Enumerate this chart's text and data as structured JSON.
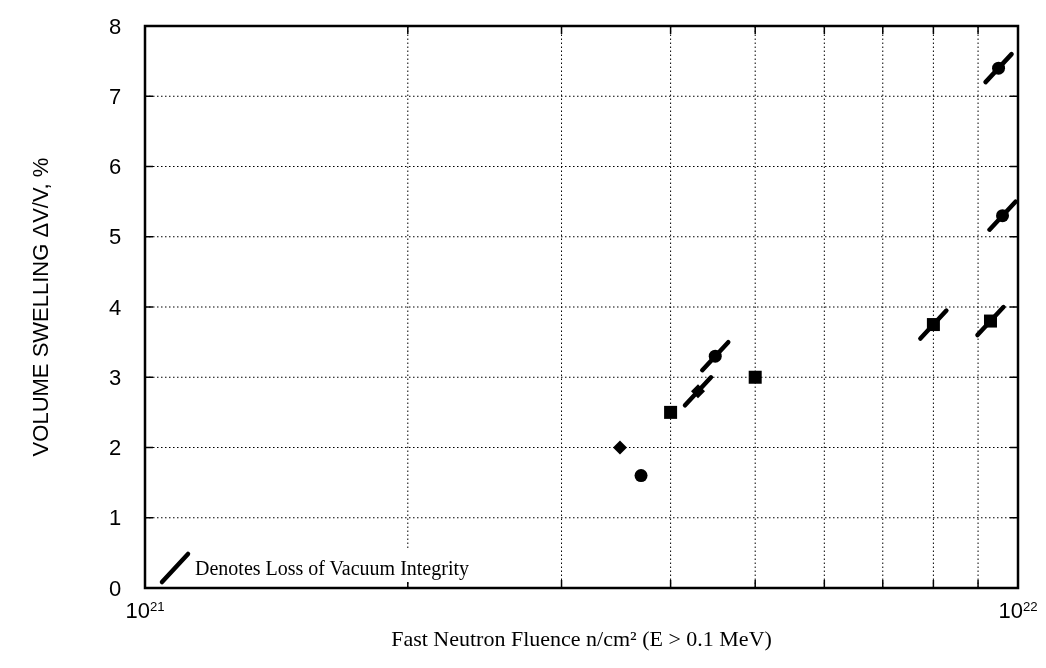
{
  "chart_data": {
    "type": "scatter",
    "xlabel": "Fast Neutron Fluence n/cm² (E > 0.1 MeV)",
    "ylabel": "VOLUME SWELLING ΔV/V, %",
    "log": "x",
    "grid": true,
    "legend": "bottom left",
    "xlim": [
      1e+21,
      1e+22
    ],
    "ylim": [
      0,
      8
    ],
    "xticks": [
      {
        "value": 1e+21,
        "label": "10$^{21}$"
      },
      {
        "value": 2e+21,
        "label": null
      },
      {
        "value": 3e+21,
        "label": null
      },
      {
        "value": 4e+21,
        "label": null
      },
      {
        "value": 5e+21,
        "label": null
      },
      {
        "value": 6e+21,
        "label": null
      },
      {
        "value": 7e+21,
        "label": null
      },
      {
        "value": 8e+21,
        "label": null
      },
      {
        "value": 9e+21,
        "label": null
      },
      {
        "value": 1e+22,
        "label": "10$^{22}$"
      }
    ],
    "yticks": [
      0,
      1,
      2,
      3,
      4,
      5,
      6,
      7,
      8
    ],
    "series": [
      {
        "color": "#000000",
        "marker": "circle",
        "x": [
          3.7e+21,
          4.5e+21,
          9.5e+21,
          9.6e+21
        ],
        "values": [
          1.6,
          3.3,
          7.4,
          5.3
        ]
      },
      {
        "color": "#000000",
        "marker": "square",
        "x": [
          4e+21,
          5e+21,
          8e+21,
          9.3e+21
        ],
        "values": [
          2.5,
          3.0,
          3.75,
          3.8
        ]
      },
      {
        "color": "#000000",
        "marker": "diamond",
        "x": [
          3.5e+21,
          4.3e+21
        ],
        "values": [
          2.0,
          2.8
        ]
      },
      {
        "name": "Denotes Loss of Vacuum Integrity",
        "color": "#000000",
        "x": [
          4.3e+21,
          4.5e+21,
          8e+21,
          9.3e+21,
          9.5e+21,
          9.6e+21
        ],
        "values": [
          2.8,
          3.3,
          3.75,
          3.8,
          7.4,
          5.3
        ]
      }
    ]
  }
}
